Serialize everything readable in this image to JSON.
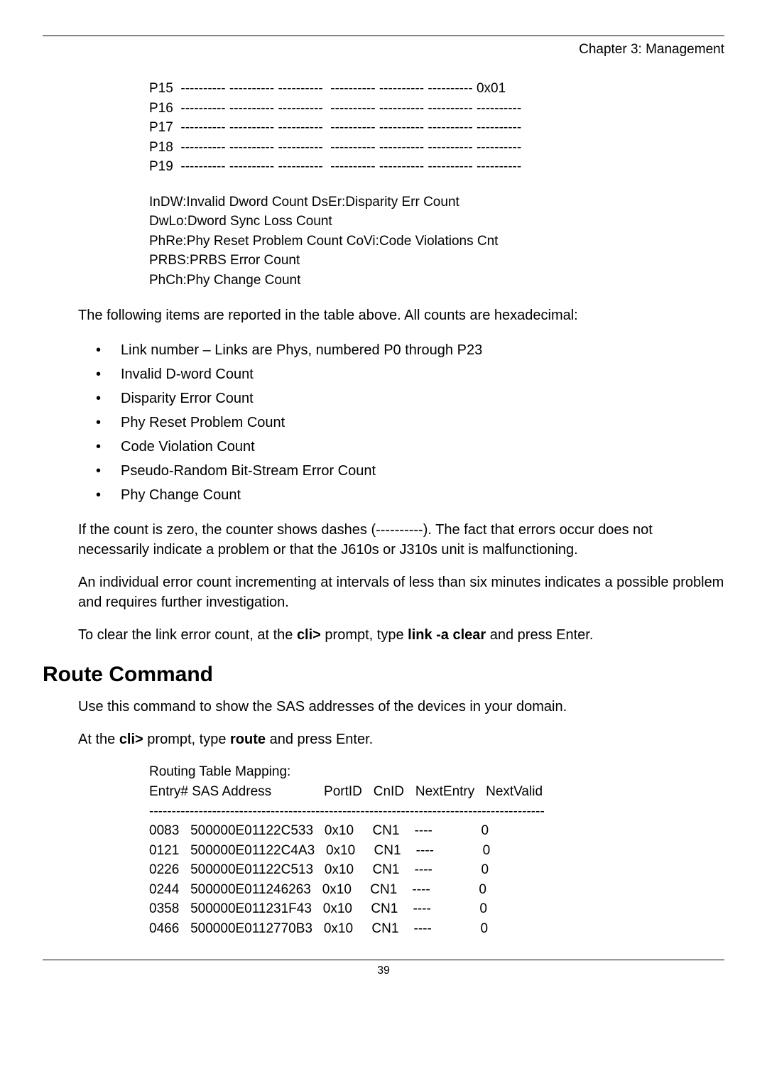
{
  "header": {
    "chapter": "Chapter 3: Management"
  },
  "link_table": {
    "rows": [
      "P15  ---------- ---------- ----------  ---------- ---------- ---------- 0x01",
      "P16  ---------- ---------- ----------  ---------- ---------- ---------- ----------",
      "P17  ---------- ---------- ----------  ---------- ---------- ---------- ----------",
      "P18  ---------- ---------- ----------  ---------- ---------- ---------- ----------",
      "P19  ---------- ---------- ----------  ---------- ---------- ---------- ----------"
    ],
    "legend": [
      "InDW:Invalid Dword Count DsEr:Disparity Err Count",
      "DwLo:Dword Sync Loss Count",
      "PhRe:Phy Reset Problem Count  CoVi:Code Violations Cnt",
      "PRBS:PRBS Error Count",
      "PhCh:Phy Change Count"
    ]
  },
  "body": {
    "intro": "The following items are reported in the table above. All counts are hexadecimal:",
    "bullets": [
      "Link number – Links are Phys, numbered P0 through P23",
      "Invalid D-word Count",
      "Disparity Error Count",
      "Phy Reset Problem Count",
      "Code Violation Count",
      "Pseudo-Random Bit-Stream Error Count",
      "Phy Change Count"
    ],
    "p1": "If the count is zero, the counter shows dashes (----------). The fact that errors occur does not necessarily indicate a problem or that the J610s or J310s unit is malfunctioning.",
    "p2": "An individual error count incrementing at intervals of less than six minutes indicates a possible problem and requires further investigation.",
    "p3_pre": "To clear the link error count, at the ",
    "p3_b1": "cli>",
    "p3_mid": " prompt, type ",
    "p3_b2": "link -a clear",
    "p3_post": " and press Enter."
  },
  "route": {
    "heading": "Route Command",
    "p1": "Use this command to show the SAS addresses of the devices in your domain.",
    "p2_pre": "At the ",
    "p2_b1": "cli>",
    "p2_mid": " prompt, type ",
    "p2_b2": "route",
    "p2_post": " and press Enter.",
    "table_title": "Routing Table Mapping:",
    "table_header": "Entry# SAS Address              PortID   CnID   NextEntry   NextValid",
    "table_divider": "----------------------------------------------------------------------------------------",
    "rows": [
      "0083   500000E01122C533   0x10     CN1    ----             0",
      "0121   500000E01122C4A3   0x10     CN1    ----             0",
      "0226   500000E01122C513   0x10     CN1    ----             0",
      "0244   500000E011246263   0x10     CN1    ----             0",
      "0358   500000E011231F43   0x10     CN1    ----             0",
      "0466   500000E0112770B3   0x10     CN1    ----             0"
    ]
  },
  "footer": {
    "page": "39"
  }
}
